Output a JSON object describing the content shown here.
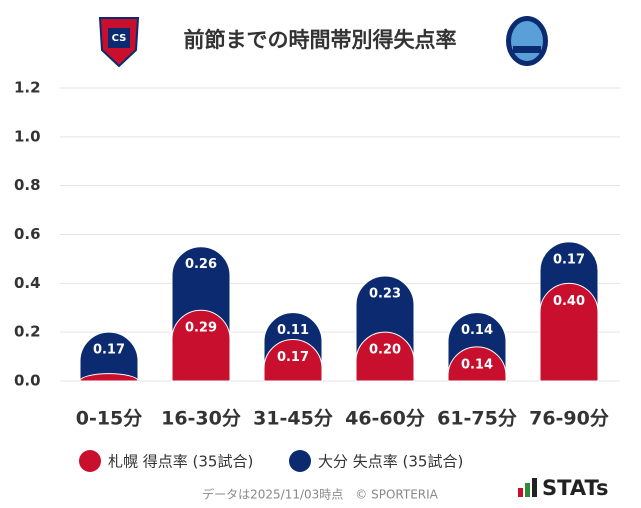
{
  "chart_data": {
    "type": "bar",
    "stacked": true,
    "title": "前節までの時間帯別得失点率",
    "categories": [
      "0-15分",
      "16-30分",
      "31-45分",
      "46-60分",
      "61-75分",
      "76-90分"
    ],
    "series": [
      {
        "name": "札幌 得点率 (35試合)",
        "color": "#c8102e",
        "values": [
          0.03,
          0.29,
          0.17,
          0.2,
          0.14,
          0.4
        ],
        "value_labels": [
          null,
          "0.29",
          "0.17",
          "0.20",
          "0.14",
          "0.40"
        ]
      },
      {
        "name": "大分 失点率 (35試合)",
        "color": "#0b2a6f",
        "values": [
          0.17,
          0.26,
          0.11,
          0.23,
          0.14,
          0.17
        ],
        "value_labels": [
          "0.17",
          "0.26",
          "0.11",
          "0.23",
          "0.14",
          "0.17"
        ]
      }
    ],
    "ylim": [
      0,
      1.2
    ],
    "yticks": [
      {
        "value": 0,
        "label": "0.0"
      },
      0.2,
      0.4,
      0.6,
      0.8,
      {
        "value": 1,
        "label": "1.0"
      },
      1.2
    ],
    "grid": true
  },
  "footer": "データは2025/11/03時点　© SPORTERIA",
  "brand": "STATs"
}
